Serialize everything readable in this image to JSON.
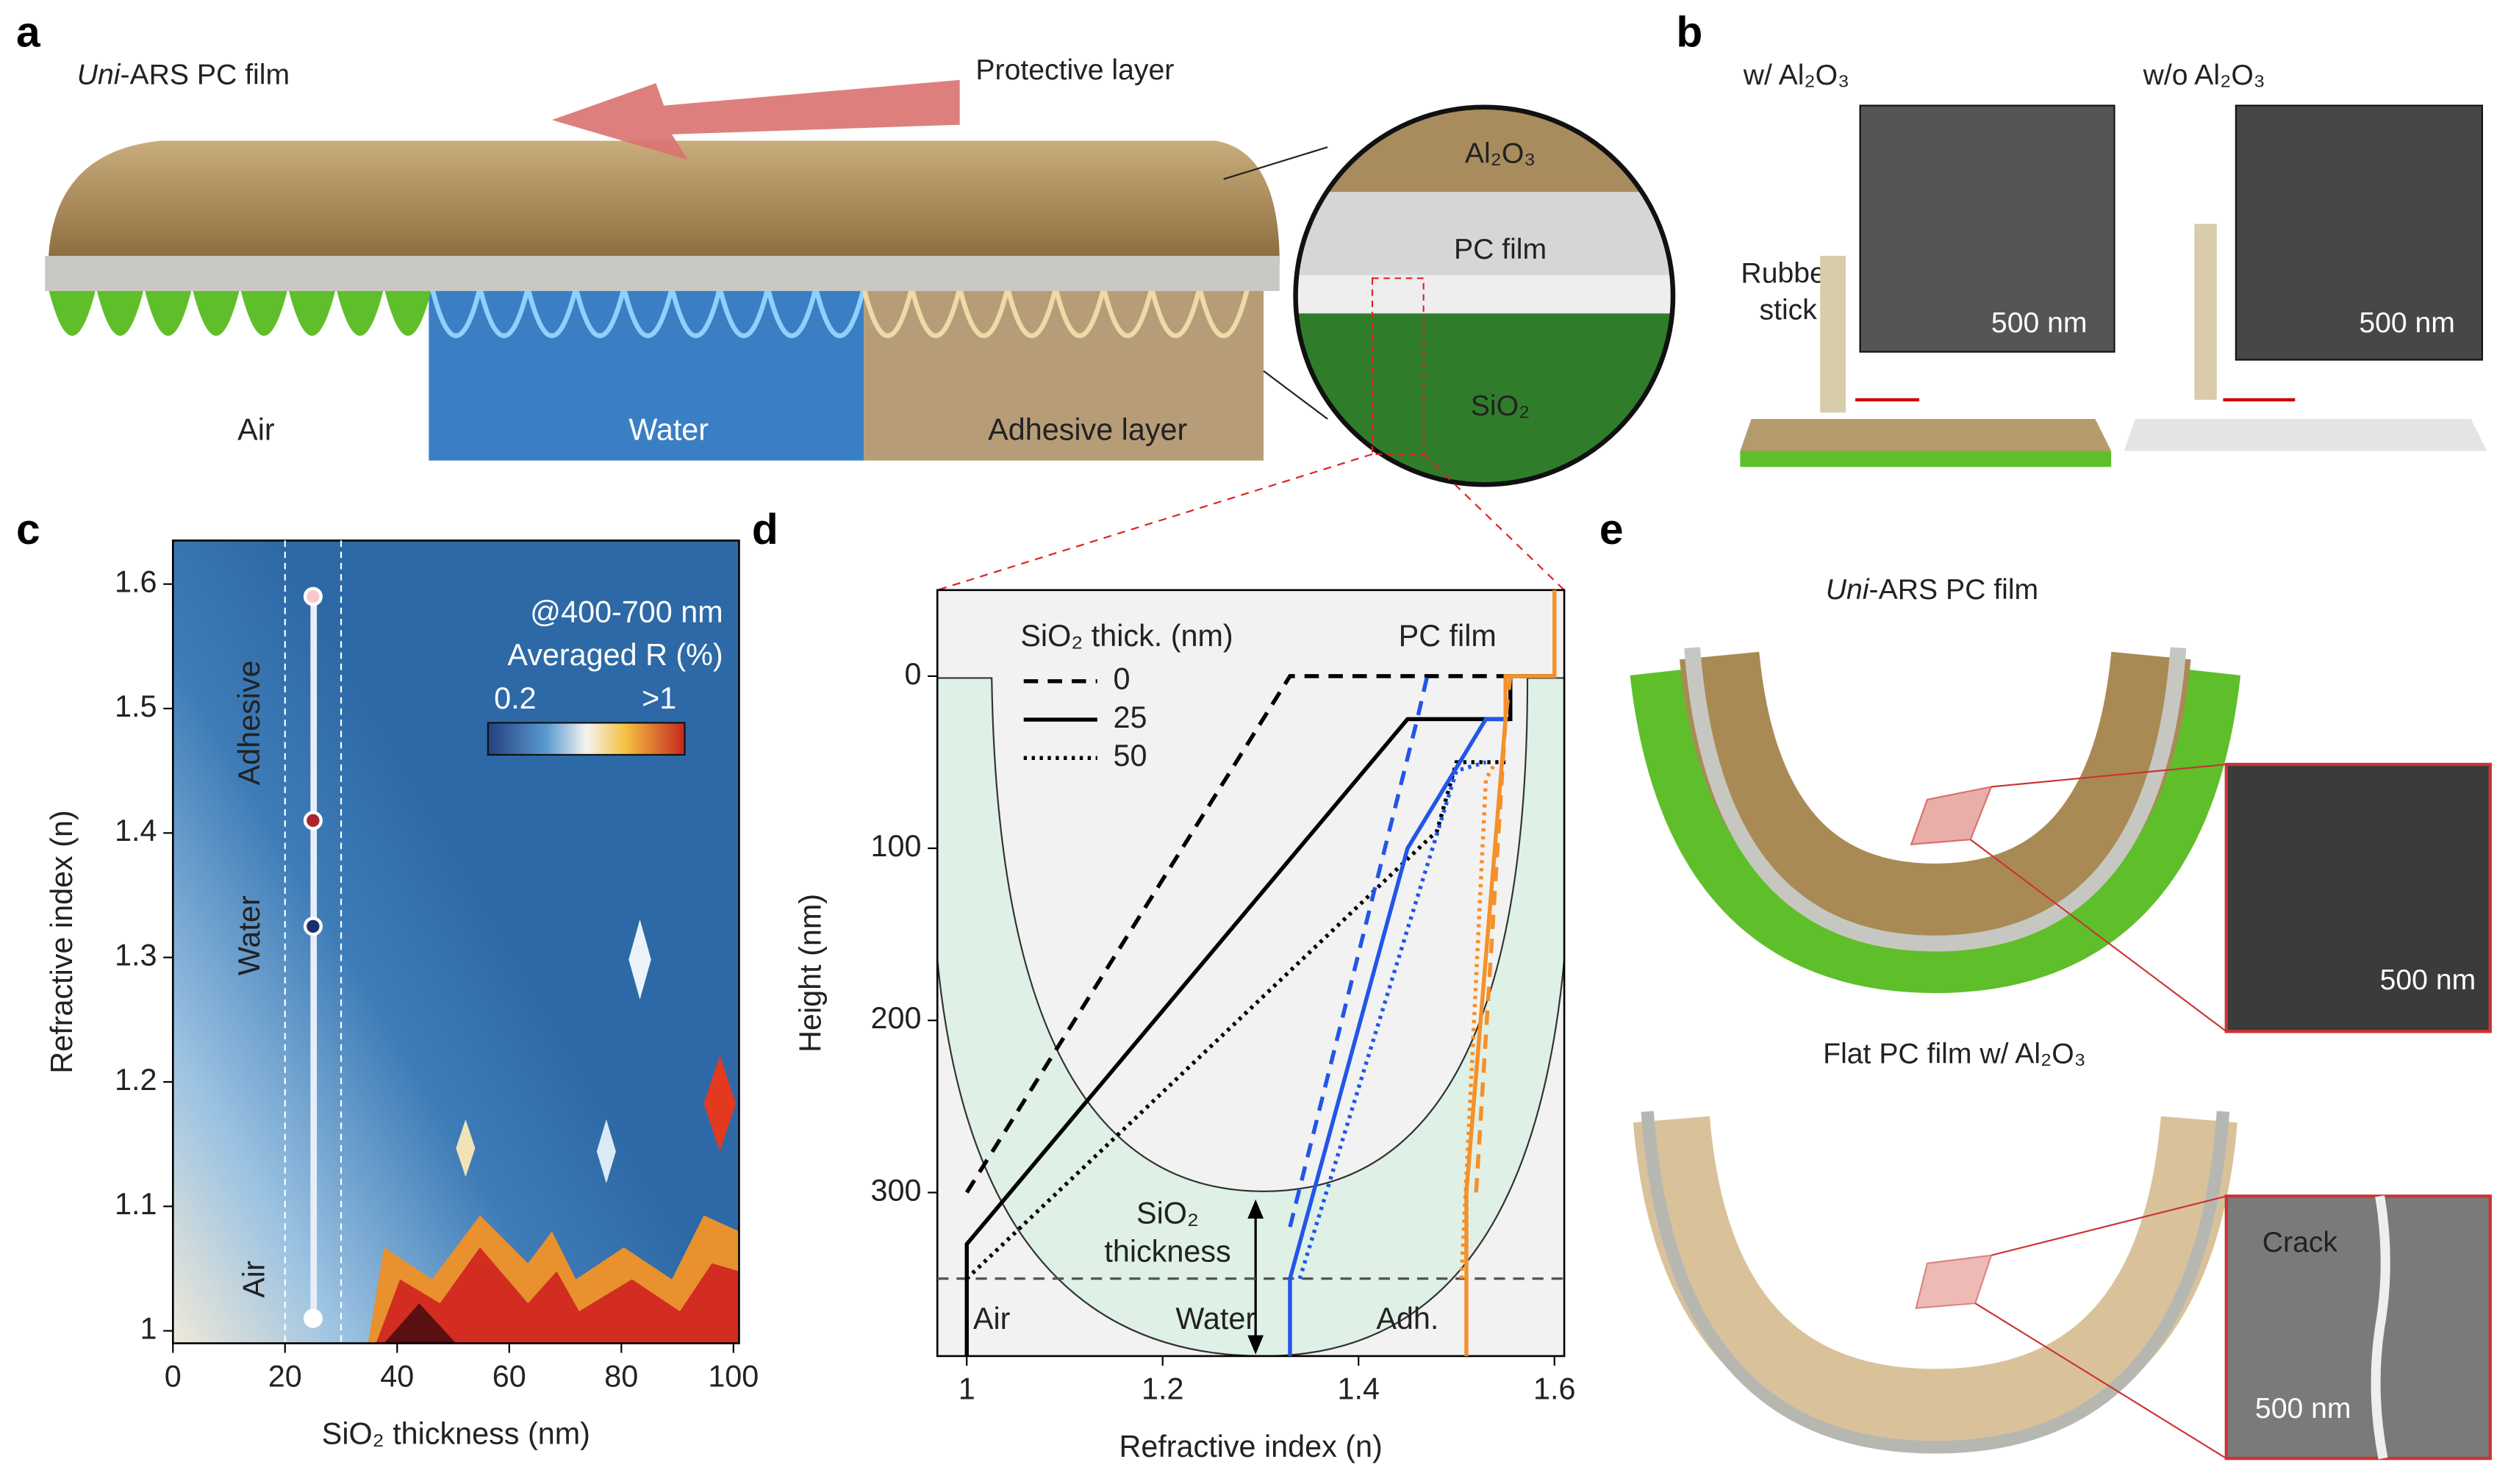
{
  "panels": {
    "a": {
      "letter": "a",
      "title": [
        "Uni",
        "-ARS PC film"
      ],
      "arrow_label": "Protective layer",
      "media": [
        "Air",
        "Water",
        "Adhesive layer"
      ],
      "layers": [
        "Al₂O₃",
        "PC film",
        "SiO₂"
      ]
    },
    "b": {
      "letter": "b",
      "conditions": [
        "w/ Al₂O₃",
        "w/o Al₂O₃"
      ],
      "stick_label": [
        "Rubber",
        "stick"
      ],
      "scale_bars": [
        "500 nm",
        "500 nm"
      ]
    },
    "c": {
      "letter": "c"
    },
    "d": {
      "letter": "d"
    },
    "e": {
      "letter": "e",
      "top_title": [
        "Uni",
        "-ARS PC film"
      ],
      "top_scale_bar": "500 nm",
      "bottom_title": "Flat PC film w/ Al₂O₃",
      "crack_label": "Crack",
      "bottom_scale_bar": "500 nm"
    }
  },
  "chart_data": [
    {
      "type": "heatmap",
      "xlabel": "SiO₂ thickness (nm)",
      "ylabel": "Refractive index (n)",
      "xlim": [
        0,
        101
      ],
      "ylim": [
        0.99,
        1.635
      ],
      "xticks": [
        0,
        20,
        40,
        60,
        80,
        100
      ],
      "yticks": [
        1,
        1.1,
        1.2,
        1.3,
        1.4,
        1.5,
        1.6
      ],
      "annotations": [
        "@400-700 nm",
        "Averaged R (%)"
      ],
      "colorbar_labels": [
        "0.2",
        ">1"
      ],
      "medium_labels": [
        "Adhesive",
        "Water",
        "Air"
      ],
      "highlight_x": [
        20,
        30
      ],
      "points": {
        "x": [
          25,
          25,
          25,
          25
        ],
        "y": [
          1.01,
          1.325,
          1.41,
          1.59
        ],
        "colors": [
          "#ffffff",
          "#1b2d6b",
          "#a8262b",
          "#f6c9cf"
        ]
      }
    },
    {
      "type": "line",
      "xlabel": "Refractive index (n)",
      "ylabel": "Height (nm)",
      "y_inverted": true,
      "xlim": [
        0.97,
        1.61
      ],
      "ylim": [
        -50,
        395
      ],
      "xticks": [
        1,
        1.2,
        1.4,
        1.6
      ],
      "yticks": [
        0,
        100,
        200,
        300
      ],
      "legend": {
        "title": "SiO₂ thick. (nm)",
        "labels": [
          0,
          25,
          50
        ],
        "dashes": [
          "dashed",
          "solid",
          "dotted"
        ]
      },
      "annotations": [
        "PC film",
        "Air",
        "Water",
        "Adh."
      ],
      "thickness_label": [
        "SiO₂",
        "thickness"
      ],
      "hline": 350,
      "series": [
        {
          "color": "#000000",
          "dash": "dashed",
          "x": [
            1,
            1.33,
            1.6
          ],
          "y": [
            300,
            0,
            0
          ]
        },
        {
          "color": "#000000",
          "dash": "solid",
          "x": [
            1,
            1,
            1.45,
            1.555,
            1.555,
            1.6
          ],
          "y": [
            395,
            330,
            25,
            25,
            0,
            0
          ]
        },
        {
          "color": "#000000",
          "dash": "dotted",
          "x": [
            1,
            1.48,
            1.5,
            1.55
          ],
          "y": [
            350,
            90,
            50,
            50
          ]
        },
        {
          "color": "#2255e8",
          "dash": "dashed",
          "x": [
            1.33,
            1.46,
            1.47
          ],
          "y": [
            320,
            25,
            0
          ]
        },
        {
          "color": "#2255e8",
          "dash": "solid",
          "x": [
            1.33,
            1.33,
            1.45,
            1.53,
            1.55
          ],
          "y": [
            395,
            350,
            100,
            25,
            25
          ]
        },
        {
          "color": "#2255e8",
          "dash": "dotted",
          "x": [
            1.34,
            1.47,
            1.5,
            1.53
          ],
          "y": [
            350,
            110,
            55,
            50
          ]
        },
        {
          "color": "#f5902a",
          "dash": "solid",
          "x": [
            1.51,
            1.51,
            1.55,
            1.55,
            1.6,
            1.6
          ],
          "y": [
            395,
            300,
            25,
            0,
            0,
            -50
          ]
        },
        {
          "color": "#f5902a",
          "dash": "dashed",
          "x": [
            1.52,
            1.55,
            1.555
          ],
          "y": [
            300,
            25,
            0
          ]
        },
        {
          "color": "#f5902a",
          "dash": "dotted",
          "x": [
            1.505,
            1.53,
            1.54
          ],
          "y": [
            350,
            60,
            50
          ]
        }
      ]
    }
  ]
}
